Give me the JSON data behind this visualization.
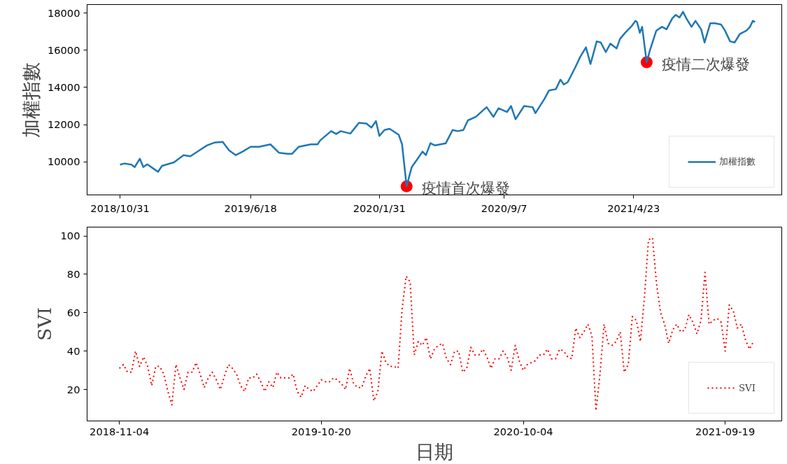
{
  "chart_data": [
    {
      "type": "line",
      "ylabel": "加權指數",
      "xlim": [
        "2018-09-03",
        "2022-01-09"
      ],
      "ylim": [
        8220,
        18460
      ],
      "xticks": [
        {
          "value": "2018-10-31",
          "label": "2018/10/31"
        },
        {
          "value": "2019-06-18",
          "label": "2019/6/18"
        },
        {
          "value": "2020-01-31",
          "label": "2020/1/31"
        },
        {
          "value": "2020-09-07",
          "label": "2020/9/7"
        },
        {
          "value": "2021-04-23",
          "label": "2021/4/23"
        }
      ],
      "yticks": [
        10000,
        12000,
        14000,
        16000,
        18000
      ],
      "grid": false,
      "legend": "bottom right",
      "line_style": "solid",
      "marker": "none",
      "series": [
        {
          "name": "加權指數",
          "color": "#1f77b4",
          "x": [
            "2018-10-31",
            "2018-11-08",
            "2018-11-20",
            "2018-11-26",
            "2018-12-05",
            "2018-12-11",
            "2018-12-18",
            "2018-12-31",
            "2019-01-06",
            "2019-01-13",
            "2019-02-03",
            "2019-02-20",
            "2019-03-04",
            "2019-03-20",
            "2019-04-02",
            "2019-04-15",
            "2019-04-30",
            "2019-05-11",
            "2019-05-23",
            "2019-06-04",
            "2019-06-18",
            "2019-07-03",
            "2019-07-23",
            "2019-08-07",
            "2019-08-22",
            "2019-08-30",
            "2019-09-11",
            "2019-10-02",
            "2019-10-14",
            "2019-10-19",
            "2019-11-07",
            "2019-11-16",
            "2019-11-24",
            "2019-12-11",
            "2019-12-26",
            "2020-01-08",
            "2020-01-17",
            "2020-01-25",
            "2020-01-31",
            "2020-02-09",
            "2020-02-18",
            "2020-03-05",
            "2020-03-11",
            "2020-03-19",
            "2020-03-28",
            "2020-04-06",
            "2020-04-16",
            "2020-04-22",
            "2020-04-30",
            "2020-05-08",
            "2020-05-27",
            "2020-06-08",
            "2020-06-17",
            "2020-06-27",
            "2020-07-05",
            "2020-07-19",
            "2020-08-07",
            "2020-08-19",
            "2020-08-28",
            "2020-09-12",
            "2020-09-19",
            "2020-09-27",
            "2020-10-12",
            "2020-10-27",
            "2020-11-01",
            "2020-11-17",
            "2020-11-25",
            "2020-12-07",
            "2020-12-15",
            "2020-12-21",
            "2020-12-28",
            "2021-01-10",
            "2021-01-19",
            "2021-01-29",
            "2021-02-06",
            "2021-02-17",
            "2021-02-24",
            "2021-03-05",
            "2021-03-13",
            "2021-03-24",
            "2021-03-30",
            "2021-04-08",
            "2021-04-20",
            "2021-04-26",
            "2021-04-29",
            "2021-05-04",
            "2021-05-08",
            "2021-05-16",
            "2021-05-22",
            "2021-06-02",
            "2021-06-12",
            "2021-06-20",
            "2021-06-30",
            "2021-07-06",
            "2021-07-13",
            "2021-07-19",
            "2021-07-25",
            "2021-08-03",
            "2021-08-10",
            "2021-08-20",
            "2021-08-26",
            "2021-09-05",
            "2021-09-13",
            "2021-09-24",
            "2021-10-01",
            "2021-10-10",
            "2021-10-18",
            "2021-10-27",
            "2021-11-08",
            "2021-11-14",
            "2021-11-19",
            "2021-11-23"
          ],
          "values": [
            9850,
            9910,
            9850,
            9720,
            10170,
            9720,
            9870,
            9590,
            9460,
            9780,
            9970,
            10360,
            10300,
            10620,
            10880,
            11030,
            11070,
            10620,
            10360,
            10550,
            10810,
            10810,
            10940,
            10490,
            10430,
            10430,
            10810,
            10940,
            10940,
            11160,
            11650,
            11500,
            11650,
            11520,
            12100,
            12060,
            11840,
            12190,
            11390,
            11710,
            11780,
            11460,
            10940,
            8680,
            9720,
            10100,
            10550,
            10360,
            11000,
            10880,
            11000,
            11710,
            11650,
            11710,
            12230,
            12420,
            12940,
            12420,
            12880,
            12680,
            13000,
            12290,
            13000,
            12940,
            12620,
            13390,
            13840,
            13910,
            14420,
            14160,
            14290,
            15070,
            15650,
            16160,
            15260,
            16480,
            16420,
            15900,
            16360,
            16100,
            16610,
            16940,
            17320,
            17580,
            17520,
            16940,
            17260,
            15350,
            16030,
            17060,
            17260,
            17130,
            17710,
            17900,
            17770,
            18070,
            17710,
            17260,
            17580,
            17130,
            16420,
            17450,
            17450,
            17390,
            17060,
            16480,
            16420,
            16870,
            17060,
            17260,
            17580,
            17520
          ]
        },
        {
          "type": "scatter",
          "color": "#ff0000",
          "x": [
            "2020-03-19",
            "2021-05-16"
          ],
          "values": [
            8680,
            15350
          ],
          "marker": "circle"
        }
      ],
      "annotations": [
        {
          "text": "疫情首次爆發",
          "x": "2020-03-19",
          "y": 8680
        },
        {
          "text": "疫情二次爆發",
          "x": "2021-05-16",
          "y": 15350
        }
      ]
    },
    {
      "type": "line",
      "xlabel": "日期",
      "ylabel": "SVI",
      "xlim": [
        "2018-09-09",
        "2021-12-26"
      ],
      "ylim": [
        3.6,
        104.6
      ],
      "xticks": [
        {
          "value": "2018-11-04",
          "label": "2018-11-04"
        },
        {
          "value": "2019-10-20",
          "label": "2019-10-20"
        },
        {
          "value": "2020-10-04",
          "label": "2020-10-04"
        },
        {
          "value": "2021-09-19",
          "label": "2021-09-19"
        }
      ],
      "yticks": [
        20,
        40,
        60,
        80,
        100
      ],
      "grid": false,
      "legend": "bottom right",
      "line_style": "dotted",
      "marker": "none",
      "series": [
        {
          "name": "SVI",
          "color": "#ff0000",
          "x": [
            "2018-11-04",
            "2018-11-11",
            "2018-11-18",
            "2018-11-25",
            "2018-12-02",
            "2018-12-09",
            "2018-12-16",
            "2018-12-23",
            "2018-12-30",
            "2019-01-06",
            "2019-01-13",
            "2019-01-20",
            "2019-01-27",
            "2019-02-03",
            "2019-02-10",
            "2019-02-17",
            "2019-02-24",
            "2019-03-03",
            "2019-03-10",
            "2019-03-17",
            "2019-03-24",
            "2019-03-31",
            "2019-04-07",
            "2019-04-14",
            "2019-04-21",
            "2019-04-28",
            "2019-05-05",
            "2019-05-12",
            "2019-05-19",
            "2019-05-26",
            "2019-06-02",
            "2019-06-09",
            "2019-06-16",
            "2019-06-23",
            "2019-06-30",
            "2019-07-07",
            "2019-07-14",
            "2019-07-21",
            "2019-07-28",
            "2019-08-04",
            "2019-08-11",
            "2019-08-18",
            "2019-08-25",
            "2019-09-01",
            "2019-09-08",
            "2019-09-15",
            "2019-09-22",
            "2019-09-29",
            "2019-10-06",
            "2019-10-13",
            "2019-10-20",
            "2019-10-27",
            "2019-11-03",
            "2019-11-10",
            "2019-11-17",
            "2019-11-24",
            "2019-12-01",
            "2019-12-08",
            "2019-12-15",
            "2019-12-22",
            "2019-12-29",
            "2020-01-05",
            "2020-01-12",
            "2020-01-19",
            "2020-01-26",
            "2020-02-02",
            "2020-02-09",
            "2020-02-16",
            "2020-02-23",
            "2020-03-01",
            "2020-03-08",
            "2020-03-15",
            "2020-03-22",
            "2020-03-29",
            "2020-04-05",
            "2020-04-12",
            "2020-04-19",
            "2020-04-26",
            "2020-05-03",
            "2020-05-10",
            "2020-05-17",
            "2020-05-24",
            "2020-05-31",
            "2020-06-07",
            "2020-06-14",
            "2020-06-21",
            "2020-06-28",
            "2020-07-05",
            "2020-07-12",
            "2020-07-19",
            "2020-07-26",
            "2020-08-02",
            "2020-08-09",
            "2020-08-16",
            "2020-08-23",
            "2020-08-30",
            "2020-09-06",
            "2020-09-13",
            "2020-09-20",
            "2020-09-27",
            "2020-10-04",
            "2020-10-11",
            "2020-10-18",
            "2020-10-25",
            "2020-11-01",
            "2020-11-08",
            "2020-11-15",
            "2020-11-22",
            "2020-11-29",
            "2020-12-06",
            "2020-12-13",
            "2020-12-20",
            "2020-12-27",
            "2021-01-03",
            "2021-01-10",
            "2021-01-17",
            "2021-01-24",
            "2021-01-31",
            "2021-02-07",
            "2021-02-14",
            "2021-02-21",
            "2021-02-28",
            "2021-03-07",
            "2021-03-14",
            "2021-03-21",
            "2021-03-28",
            "2021-04-04",
            "2021-04-11",
            "2021-04-18",
            "2021-04-25",
            "2021-05-02",
            "2021-05-09",
            "2021-05-16",
            "2021-05-23",
            "2021-05-30",
            "2021-06-06",
            "2021-06-13",
            "2021-06-20",
            "2021-06-27",
            "2021-07-04",
            "2021-07-11",
            "2021-07-18",
            "2021-07-25",
            "2021-08-01",
            "2021-08-08",
            "2021-08-15",
            "2021-08-22",
            "2021-08-29",
            "2021-09-05",
            "2021-09-12",
            "2021-09-19",
            "2021-09-26",
            "2021-10-03",
            "2021-10-10",
            "2021-10-17",
            "2021-10-24",
            "2021-10-31",
            "2021-11-07"
          ],
          "values": [
            31,
            33,
            29,
            29,
            40,
            32,
            37,
            32,
            22,
            32,
            32,
            28,
            19,
            12,
            33,
            26,
            20,
            29,
            29,
            34,
            28,
            21,
            26,
            29,
            25,
            20,
            27,
            33,
            31,
            28,
            22,
            19,
            26,
            26,
            28,
            24,
            19,
            24,
            21,
            29,
            26,
            26,
            26,
            28,
            19,
            16,
            22,
            20,
            19,
            22,
            25,
            24,
            24,
            26,
            25,
            23,
            20,
            31,
            23,
            21,
            21,
            27,
            31,
            14,
            19,
            40,
            34,
            32,
            32,
            31,
            62,
            79,
            76,
            38,
            45,
            43,
            47,
            36,
            41,
            43,
            44,
            36,
            33,
            40,
            40,
            29,
            31,
            42,
            38,
            38,
            41,
            37,
            31,
            36,
            36,
            40,
            37,
            30,
            43,
            35,
            30,
            33,
            34,
            35,
            38,
            38,
            41,
            36,
            36,
            41,
            40,
            37,
            36,
            52,
            47,
            50,
            54,
            48,
            9,
            28,
            54,
            44,
            43,
            45,
            50,
            29,
            33,
            58,
            56,
            45,
            68,
            98,
            99,
            75,
            60,
            54,
            44,
            51,
            54,
            50,
            51,
            59,
            55,
            49,
            56,
            81,
            54,
            56,
            57,
            55,
            40,
            64,
            61,
            52,
            54,
            46,
            41,
            45
          ]
        }
      ]
    }
  ]
}
